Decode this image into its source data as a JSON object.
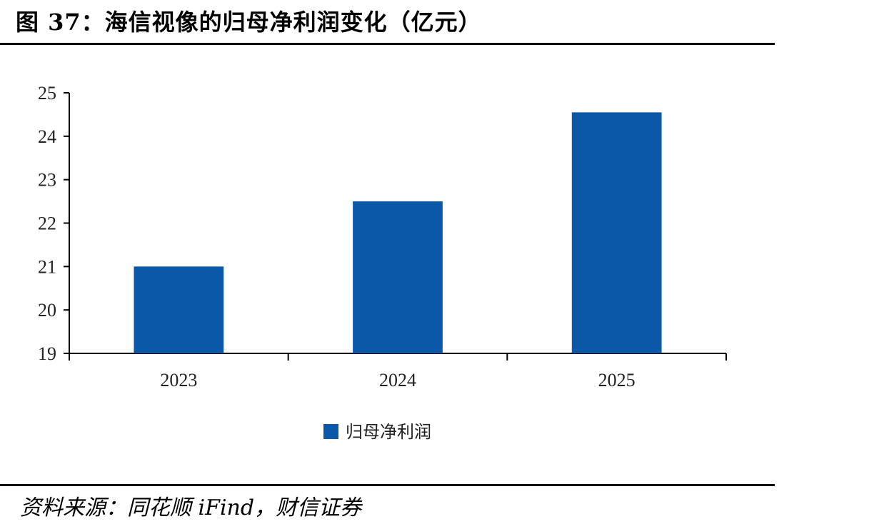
{
  "figure": {
    "title": "图 37：海信视像的归母净利润变化（亿元）",
    "source": "资料来源：同花顺 iFind，财信证券"
  },
  "chart_data": {
    "type": "bar",
    "categories": [
      "2023",
      "2024",
      "2025"
    ],
    "series": [
      {
        "name": "归母净利润",
        "values": [
          21.0,
          22.5,
          24.55
        ],
        "color": "#0b57a8"
      }
    ],
    "ylim": [
      19,
      25
    ],
    "yticks": [
      19,
      20,
      21,
      22,
      23,
      24,
      25
    ],
    "xlabel": "",
    "ylabel": "",
    "grid": false,
    "legend": "bottom-center"
  }
}
